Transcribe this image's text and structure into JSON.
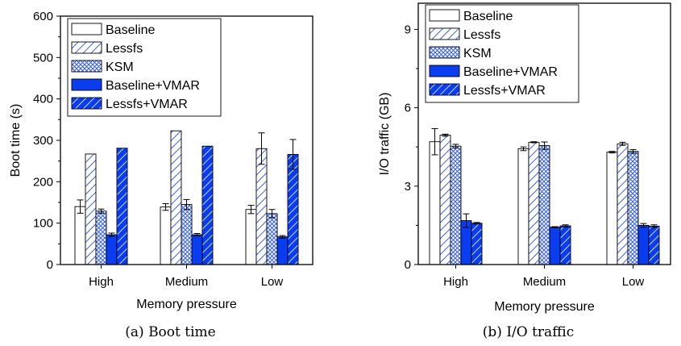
{
  "colors": {
    "blue": "#0a3cf0",
    "hatch_light": "#3a62e8",
    "stroke": "#000000"
  },
  "legend_entries": [
    "Baseline",
    "Lessfs",
    "KSM",
    "Baseline+VMAR",
    "Lessfs+VMAR"
  ],
  "chart_data": [
    {
      "type": "bar",
      "caption": "(a) Boot time",
      "xlabel": "Memory pressure",
      "ylabel": "Boot time (s)",
      "ylim": [
        0,
        600
      ],
      "yticks": [
        0,
        100,
        200,
        300,
        400,
        500,
        600
      ],
      "categories": [
        "High",
        "Medium",
        "Low"
      ],
      "legend_position": "top-left",
      "series": [
        {
          "name": "Baseline",
          "values": [
            140,
            139,
            133
          ],
          "errors": [
            16,
            8,
            10
          ]
        },
        {
          "name": "Lessfs",
          "values": [
            267,
            323,
            280
          ],
          "errors": [
            0,
            0,
            38
          ]
        },
        {
          "name": "KSM",
          "values": [
            129,
            145,
            123
          ],
          "errors": [
            5,
            12,
            10
          ]
        },
        {
          "name": "Baseline+VMAR",
          "values": [
            72,
            72,
            67
          ],
          "errors": [
            4,
            3,
            3
          ]
        },
        {
          "name": "Lessfs+VMAR",
          "values": [
            281,
            286,
            266
          ],
          "errors": [
            0,
            0,
            36
          ]
        }
      ]
    },
    {
      "type": "bar",
      "caption": "(b) I/O traffic",
      "xlabel": "Memory pressure",
      "ylabel": "I/O traffic (GB)",
      "ylim": [
        0,
        10
      ],
      "yticks": [
        0,
        3,
        6,
        9
      ],
      "categories": [
        "High",
        "Medium",
        "Low"
      ],
      "legend_position": "top-left",
      "series": [
        {
          "name": "Baseline",
          "values": [
            4.7,
            4.43,
            4.3
          ],
          "errors": [
            0.5,
            0.07,
            0.03
          ]
        },
        {
          "name": "Lessfs",
          "values": [
            4.95,
            4.68,
            4.62
          ],
          "errors": [
            0.04,
            0.02,
            0.06
          ]
        },
        {
          "name": "KSM",
          "values": [
            4.53,
            4.55,
            4.33
          ],
          "errors": [
            0.07,
            0.14,
            0.07
          ]
        },
        {
          "name": "Baseline+VMAR",
          "values": [
            1.68,
            1.43,
            1.5
          ],
          "errors": [
            0.26,
            0.02,
            0.07
          ]
        },
        {
          "name": "Lessfs+VMAR",
          "values": [
            1.58,
            1.48,
            1.47
          ],
          "errors": [
            0.03,
            0.04,
            0.05
          ]
        }
      ]
    }
  ]
}
